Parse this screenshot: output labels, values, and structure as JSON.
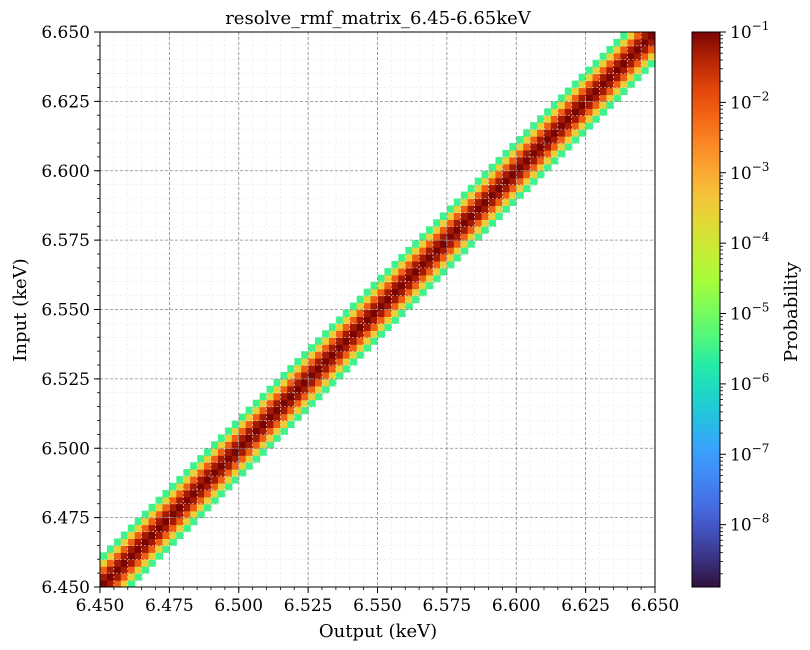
{
  "chart_data": {
    "type": "heatmap",
    "title": "resolve_rmf_matrix_6.45-6.65keV",
    "xlabel": "Output (keV)",
    "ylabel": "Input (keV)",
    "xlim": [
      6.45,
      6.65
    ],
    "ylim": [
      6.45,
      6.65
    ],
    "x_ticks": [
      "6.450",
      "6.475",
      "6.500",
      "6.525",
      "6.550",
      "6.575",
      "6.600",
      "6.625",
      "6.650"
    ],
    "y_ticks": [
      "6.450",
      "6.475",
      "6.500",
      "6.525",
      "6.550",
      "6.575",
      "6.600",
      "6.625",
      "6.650"
    ],
    "x_tick_values": [
      6.45,
      6.475,
      6.5,
      6.525,
      6.55,
      6.575,
      6.6,
      6.625,
      6.65
    ],
    "y_tick_values": [
      6.45,
      6.475,
      6.5,
      6.525,
      6.55,
      6.575,
      6.6,
      6.625,
      6.65
    ],
    "grid": true,
    "diagonal": {
      "peak_probability": 0.1,
      "min_probability": 1e-09,
      "band_halfwidth_keV": 0.012,
      "gaussian_sigma_keV": 0.0022
    },
    "colorbar": {
      "label": "Probability",
      "scale": "log",
      "range": [
        1.3e-09,
        0.1
      ],
      "ticks": [
        {
          "exp": -1,
          "base": "10",
          "sup": "−1"
        },
        {
          "exp": -2,
          "base": "10",
          "sup": "−2"
        },
        {
          "exp": -3,
          "base": "10",
          "sup": "−3"
        },
        {
          "exp": -4,
          "base": "10",
          "sup": "−4"
        },
        {
          "exp": -5,
          "base": "10",
          "sup": "−5"
        },
        {
          "exp": -6,
          "base": "10",
          "sup": "−6"
        },
        {
          "exp": -7,
          "base": "10",
          "sup": "−7"
        },
        {
          "exp": -8,
          "base": "10",
          "sup": "−8"
        }
      ],
      "colormap": "turbo"
    }
  }
}
